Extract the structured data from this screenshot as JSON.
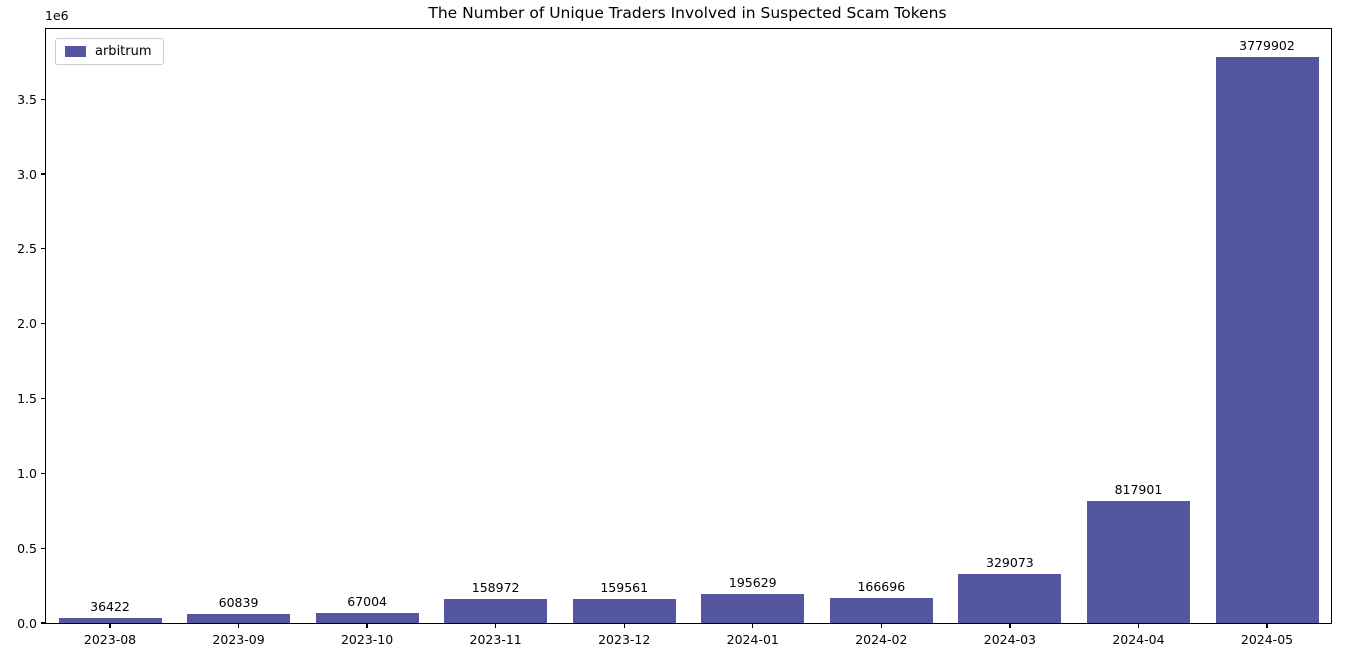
{
  "chart_data": {
    "type": "bar",
    "title": "The Number of Unique Traders Involved in Suspected Scam Tokens",
    "y_offset_label": "1e6",
    "categories": [
      "2023-08",
      "2023-09",
      "2023-10",
      "2023-11",
      "2023-12",
      "2024-01",
      "2024-02",
      "2024-03",
      "2024-04",
      "2024-05"
    ],
    "series": [
      {
        "name": "arbitrum",
        "values": [
          36422,
          60839,
          67004,
          158972,
          159561,
          195629,
          166696,
          329073,
          817901,
          3779902
        ]
      }
    ],
    "bar_value_labels": [
      "36422",
      "60839",
      "67004",
      "158972",
      "159561",
      "195629",
      "166696",
      "329073",
      "817901",
      "3779902"
    ],
    "ytick_labels": [
      "0.0",
      "0.5",
      "1.0",
      "1.5",
      "2.0",
      "2.5",
      "3.0",
      "3.5"
    ],
    "ytick_values": [
      0,
      500000,
      1000000,
      1500000,
      2000000,
      2500000,
      3000000,
      3500000
    ],
    "ylim": [
      0,
      3968897
    ],
    "xlabel": "",
    "ylabel": "",
    "grid": false,
    "legend_position": "upper left",
    "bar_color": "#5556a0",
    "text_color": "#000000",
    "spine_color": "#000000"
  }
}
